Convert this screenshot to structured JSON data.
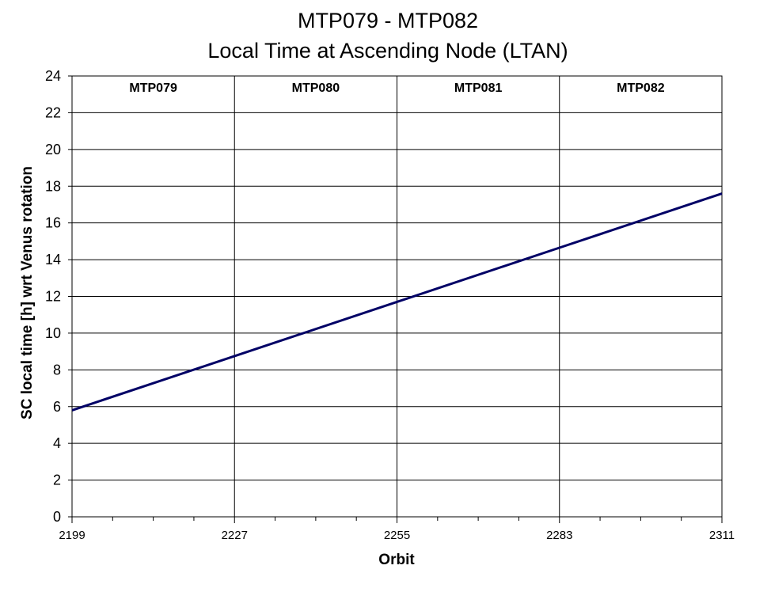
{
  "chart_data": {
    "type": "line",
    "title": "MTP079 - MTP082",
    "subtitle": "Local Time at Ascending Node (LTAN)",
    "xlabel": "Orbit",
    "ylabel": "SC local time [h] wrt Venus rotation",
    "xlim": [
      2199,
      2311
    ],
    "ylim": [
      0,
      24
    ],
    "x_ticks": [
      2199,
      2227,
      2255,
      2283,
      2311
    ],
    "y_ticks": [
      0,
      2,
      4,
      6,
      8,
      10,
      12,
      14,
      16,
      18,
      20,
      22,
      24
    ],
    "x_minor_step": 7,
    "grid": true,
    "legend": "none",
    "line_color": "#000066",
    "sections": [
      {
        "label": "MTP079",
        "start": 2199,
        "end": 2227
      },
      {
        "label": "MTP080",
        "start": 2227,
        "end": 2255
      },
      {
        "label": "MTP081",
        "start": 2255,
        "end": 2283
      },
      {
        "label": "MTP082",
        "start": 2283,
        "end": 2311
      }
    ],
    "series": [
      {
        "x": [
          2199,
          2227,
          2255,
          2283,
          2311
        ],
        "y": [
          5.8,
          8.75,
          11.7,
          14.65,
          17.6
        ]
      }
    ]
  }
}
